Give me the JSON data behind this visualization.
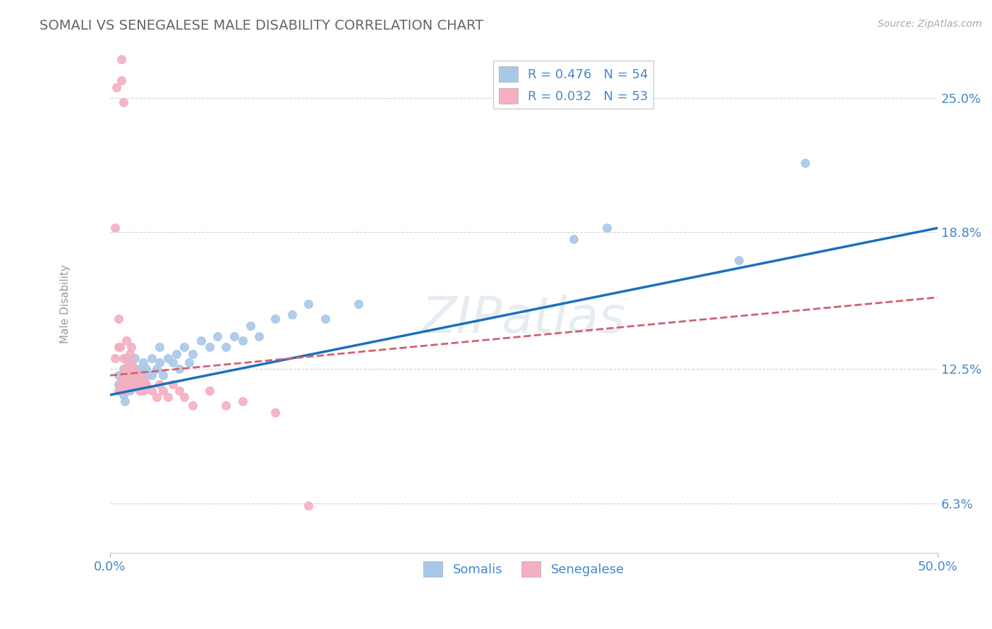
{
  "title": "SOMALI VS SENEGALESE MALE DISABILITY CORRELATION CHART",
  "source_text": "Source: ZipAtlas.com",
  "ylabel": "Male Disability",
  "xlim": [
    0.0,
    0.5
  ],
  "ylim": [
    0.04,
    0.27
  ],
  "yticks": [
    0.063,
    0.125,
    0.188,
    0.25
  ],
  "ytick_labels": [
    "6.3%",
    "12.5%",
    "18.8%",
    "25.0%"
  ],
  "xticks": [
    0.0,
    0.5
  ],
  "xtick_labels": [
    "0.0%",
    "50.0%"
  ],
  "somali_color": "#a8c8e8",
  "senegalese_color": "#f4b0c0",
  "somali_line_color": "#1a6fbd",
  "senegalese_line_color": "#d06070",
  "legend_R1": "R = 0.476",
  "legend_N1": "N = 54",
  "legend_R2": "R = 0.032",
  "legend_N2": "N = 53",
  "background_color": "#ffffff",
  "grid_color": "#cccccc",
  "title_color": "#666666",
  "label_color": "#4488cc",
  "watermark": "ZIPatlas",
  "somali_x": [
    0.005,
    0.005,
    0.006,
    0.007,
    0.008,
    0.008,
    0.009,
    0.01,
    0.01,
    0.01,
    0.012,
    0.012,
    0.013,
    0.015,
    0.015,
    0.015,
    0.016,
    0.017,
    0.018,
    0.018,
    0.02,
    0.02,
    0.022,
    0.022,
    0.025,
    0.025,
    0.028,
    0.03,
    0.03,
    0.032,
    0.035,
    0.038,
    0.04,
    0.042,
    0.045,
    0.048,
    0.05,
    0.055,
    0.06,
    0.065,
    0.07,
    0.075,
    0.08,
    0.085,
    0.09,
    0.1,
    0.11,
    0.12,
    0.13,
    0.15,
    0.28,
    0.3,
    0.38,
    0.42
  ],
  "somali_y": [
    0.118,
    0.122,
    0.115,
    0.12,
    0.113,
    0.125,
    0.11,
    0.118,
    0.125,
    0.13,
    0.115,
    0.122,
    0.128,
    0.118,
    0.122,
    0.13,
    0.125,
    0.12,
    0.118,
    0.125,
    0.122,
    0.128,
    0.118,
    0.125,
    0.122,
    0.13,
    0.125,
    0.128,
    0.135,
    0.122,
    0.13,
    0.128,
    0.132,
    0.125,
    0.135,
    0.128,
    0.132,
    0.138,
    0.135,
    0.14,
    0.135,
    0.14,
    0.138,
    0.145,
    0.14,
    0.148,
    0.15,
    0.155,
    0.148,
    0.155,
    0.185,
    0.19,
    0.175,
    0.22
  ],
  "senegalese_x": [
    0.003,
    0.003,
    0.004,
    0.004,
    0.005,
    0.005,
    0.005,
    0.006,
    0.006,
    0.007,
    0.007,
    0.007,
    0.008,
    0.008,
    0.008,
    0.009,
    0.009,
    0.01,
    0.01,
    0.01,
    0.01,
    0.011,
    0.011,
    0.012,
    0.012,
    0.012,
    0.013,
    0.013,
    0.013,
    0.014,
    0.015,
    0.015,
    0.016,
    0.018,
    0.018,
    0.019,
    0.02,
    0.021,
    0.022,
    0.025,
    0.028,
    0.03,
    0.032,
    0.035,
    0.038,
    0.042,
    0.045,
    0.05,
    0.06,
    0.07,
    0.08,
    0.1,
    0.12
  ],
  "senegalese_y": [
    0.13,
    0.19,
    0.255,
    0.278,
    0.115,
    0.135,
    0.148,
    0.118,
    0.135,
    0.12,
    0.258,
    0.268,
    0.122,
    0.13,
    0.248,
    0.115,
    0.125,
    0.118,
    0.125,
    0.13,
    0.138,
    0.122,
    0.128,
    0.118,
    0.125,
    0.132,
    0.12,
    0.128,
    0.135,
    0.122,
    0.118,
    0.125,
    0.12,
    0.115,
    0.122,
    0.118,
    0.115,
    0.12,
    0.118,
    0.115,
    0.112,
    0.118,
    0.115,
    0.112,
    0.118,
    0.115,
    0.112,
    0.108,
    0.115,
    0.108,
    0.11,
    0.105,
    0.062
  ],
  "somali_trend": [
    0.113,
    0.19
  ],
  "senegalese_trend": [
    0.122,
    0.158
  ]
}
